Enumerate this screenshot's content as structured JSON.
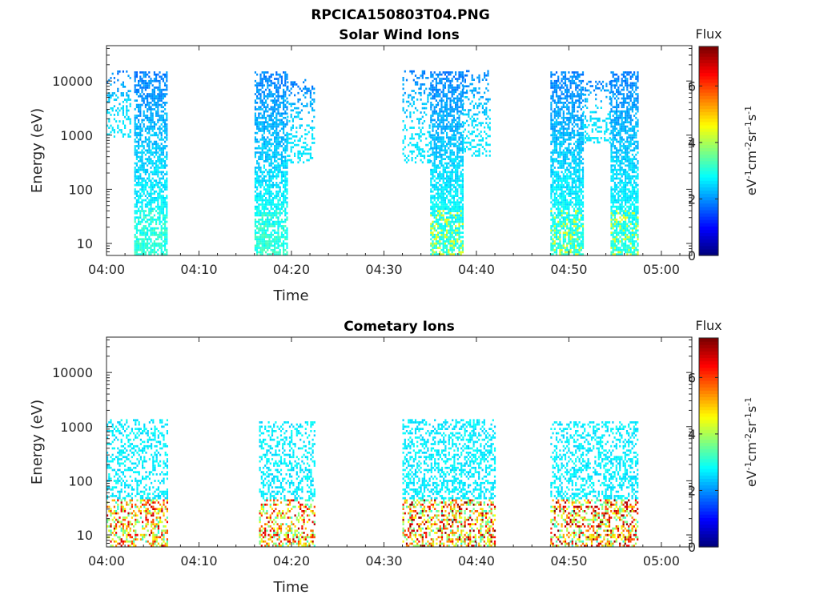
{
  "figure_title": "RPCICA150803T04.PNG",
  "colors": {
    "axes": "#262626",
    "background": "#ffffff"
  },
  "chart_data": [
    {
      "type": "heatmap",
      "title": "Solar Wind Ions",
      "xlabel": "Time",
      "ylabel": "Energy (eV)",
      "x_tick_labels": [
        "04:00",
        "04:10",
        "04:20",
        "04:30",
        "04:40",
        "04:50",
        "05:00"
      ],
      "x_tick_minutes": [
        0,
        10,
        20,
        30,
        40,
        50,
        60
      ],
      "xlim_minutes": [
        0,
        63.3
      ],
      "ylim": [
        6,
        45000
      ],
      "yscale": "log",
      "y_tick_labels": [
        "10",
        "100",
        "1000",
        "10000"
      ],
      "y_tick_values": [
        10,
        100,
        1000,
        10000
      ],
      "colorbar": {
        "label": "Flux",
        "unit_label": "eV-1cm-2sr-1s-1",
        "ticks": [
          0,
          2,
          4,
          6
        ],
        "range": [
          0,
          7.4
        ],
        "colormap": "jet"
      },
      "bursts": [
        {
          "t0": 0.0,
          "t1": 2.5,
          "emin": 900,
          "emax": 15000,
          "density": 0.35,
          "fmax": 2.6
        },
        {
          "t0": 3.0,
          "t1": 6.5,
          "emin": 6,
          "emax": 15000,
          "density": 0.75,
          "fmax": 3.3
        },
        {
          "t0": 16.0,
          "t1": 19.5,
          "emin": 6,
          "emax": 15000,
          "density": 0.75,
          "fmax": 3.3
        },
        {
          "t0": 19.5,
          "t1": 22.5,
          "emin": 300,
          "emax": 10000,
          "density": 0.3,
          "fmax": 2.6
        },
        {
          "t0": 32.0,
          "t1": 35.0,
          "emin": 300,
          "emax": 15000,
          "density": 0.35,
          "fmax": 2.6
        },
        {
          "t0": 35.0,
          "t1": 38.5,
          "emin": 6,
          "emax": 15000,
          "density": 0.8,
          "fmax": 4.4
        },
        {
          "t0": 38.5,
          "t1": 41.5,
          "emin": 400,
          "emax": 15000,
          "density": 0.35,
          "fmax": 2.6
        },
        {
          "t0": 48.0,
          "t1": 51.5,
          "emin": 6,
          "emax": 15000,
          "density": 0.8,
          "fmax": 4.4
        },
        {
          "t0": 51.5,
          "t1": 54.5,
          "emin": 700,
          "emax": 10000,
          "density": 0.35,
          "fmax": 2.6
        },
        {
          "t0": 54.5,
          "t1": 57.5,
          "emin": 6,
          "emax": 15000,
          "density": 0.8,
          "fmax": 4.4
        }
      ]
    },
    {
      "type": "heatmap",
      "title": "Cometary Ions",
      "xlabel": "Time",
      "ylabel": "Energy (eV)",
      "x_tick_labels": [
        "04:00",
        "04:10",
        "04:20",
        "04:30",
        "04:40",
        "04:50",
        "05:00"
      ],
      "x_tick_minutes": [
        0,
        10,
        20,
        30,
        40,
        50,
        60
      ],
      "xlim_minutes": [
        0,
        63.3
      ],
      "ylim": [
        6,
        45000
      ],
      "yscale": "log",
      "y_tick_labels": [
        "10",
        "100",
        "1000",
        "10000"
      ],
      "y_tick_values": [
        10,
        100,
        1000,
        10000
      ],
      "colorbar": {
        "label": "Flux",
        "unit_label": "eV-1cm-2sr-1s-1",
        "ticks": [
          0,
          2,
          4,
          6
        ],
        "range": [
          0,
          7.4
        ],
        "colormap": "jet"
      },
      "bursts": [
        {
          "t0": 0.0,
          "t1": 6.5,
          "emin": 6,
          "emax": 1300,
          "density": 0.45,
          "fmax": 7.0
        },
        {
          "t0": 16.5,
          "t1": 22.5,
          "emin": 6,
          "emax": 1200,
          "density": 0.45,
          "fmax": 7.0
        },
        {
          "t0": 32.0,
          "t1": 42.0,
          "emin": 6,
          "emax": 1300,
          "density": 0.5,
          "fmax": 7.4
        },
        {
          "t0": 48.0,
          "t1": 57.5,
          "emin": 6,
          "emax": 1200,
          "density": 0.5,
          "fmax": 7.4
        }
      ]
    }
  ]
}
